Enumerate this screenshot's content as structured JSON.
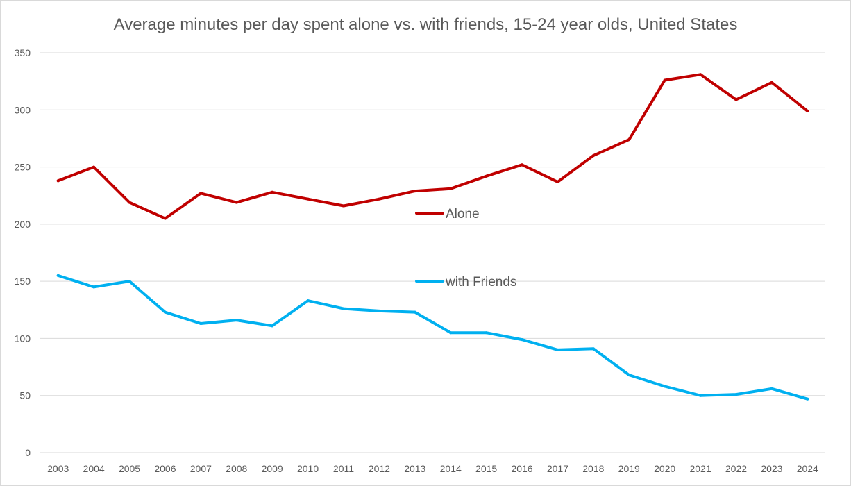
{
  "chart_data": {
    "type": "line",
    "title": "Average minutes per day spent alone vs. with friends, 15-24 year olds, United States",
    "xlabel": "",
    "ylabel": "",
    "ylim": [
      0,
      350
    ],
    "yticks": [
      0,
      50,
      100,
      150,
      200,
      250,
      300,
      350
    ],
    "grid": true,
    "legend_position": "center",
    "categories": [
      "2003",
      "2004",
      "2005",
      "2006",
      "2007",
      "2008",
      "2009",
      "2010",
      "2011",
      "2012",
      "2013",
      "2014",
      "2015",
      "2016",
      "2017",
      "2018",
      "2019",
      "2020",
      "2021",
      "2022",
      "2023",
      "2024"
    ],
    "series": [
      {
        "name": "Alone",
        "color": "#C00000",
        "values": [
          238,
          250,
          219,
          205,
          227,
          219,
          228,
          222,
          216,
          222,
          229,
          231,
          242,
          252,
          237,
          260,
          274,
          326,
          331,
          309,
          324,
          299
        ]
      },
      {
        "name": "with Friends",
        "color": "#00B0F0",
        "values": [
          155,
          145,
          150,
          123,
          113,
          116,
          111,
          133,
          126,
          124,
          123,
          105,
          105,
          99,
          90,
          91,
          68,
          58,
          50,
          51,
          56,
          47
        ]
      }
    ]
  }
}
